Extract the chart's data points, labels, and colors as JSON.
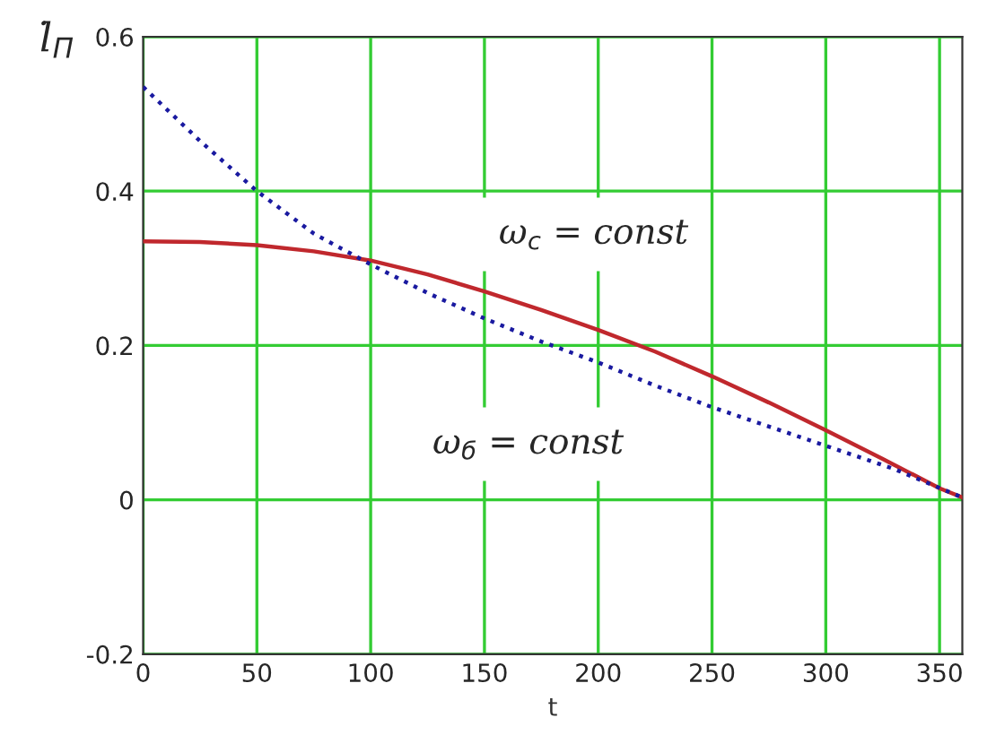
{
  "chart_data": {
    "type": "line",
    "xlabel": "t",
    "ylabel": "l̇$_{П}$",
    "xlim": [
      0,
      360
    ],
    "xticks": [
      0,
      50,
      100,
      150,
      200,
      250,
      300,
      350
    ],
    "ylim": [
      -0.2,
      0.6
    ],
    "yticks": [
      -0.2,
      0,
      0.2,
      0.4,
      0.6
    ],
    "grid": true,
    "annotations": [
      "ω$_{с}$ = const",
      "ω$_{б}$ = const"
    ],
    "series": [
      {
        "color": "#c0282d",
        "line_style": "solid",
        "x": [
          0,
          25,
          50,
          75,
          100,
          125,
          150,
          175,
          200,
          225,
          250,
          275,
          300,
          325,
          350,
          360
        ],
        "values": [
          0.335,
          0.334,
          0.33,
          0.322,
          0.31,
          0.292,
          0.27,
          0.246,
          0.22,
          0.192,
          0.16,
          0.126,
          0.09,
          0.053,
          0.015,
          0.003
        ]
      },
      {
        "color": "#1a1aa0",
        "line_style": "dotted",
        "x": [
          0,
          25,
          50,
          75,
          100,
          125,
          150,
          175,
          200,
          225,
          250,
          275,
          300,
          330,
          360
        ],
        "values": [
          0.535,
          0.465,
          0.4,
          0.345,
          0.305,
          0.268,
          0.235,
          0.205,
          0.178,
          0.148,
          0.12,
          0.095,
          0.07,
          0.04,
          0.003
        ]
      }
    ]
  }
}
